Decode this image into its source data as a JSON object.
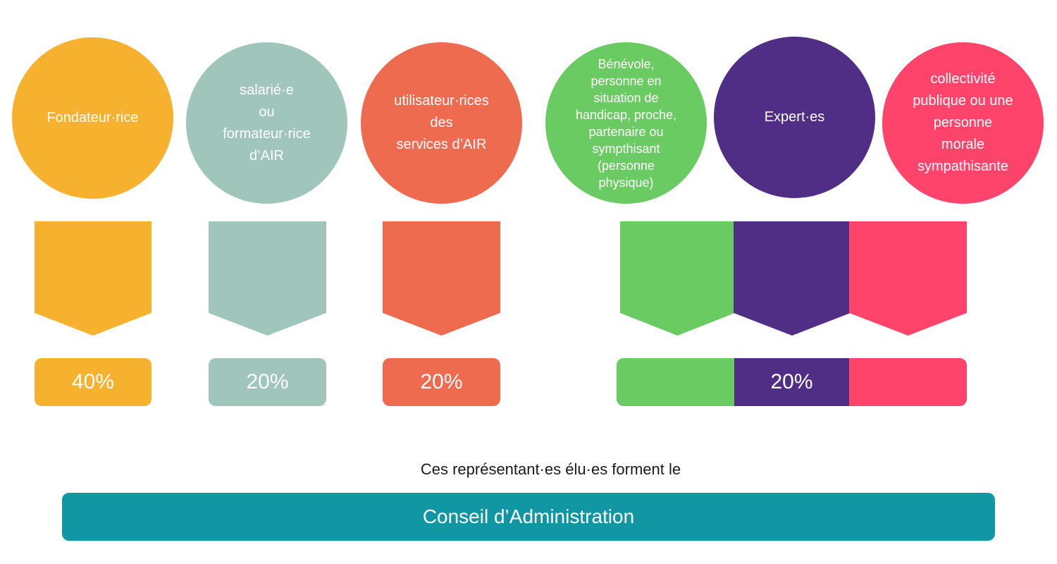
{
  "colors": {
    "fondateur": "#F6B12F",
    "salarie": "#A0C6BC",
    "utilisateur": "#EE6B4F",
    "benevole": "#6BCB63",
    "expert": "#512E85",
    "collectivite": "#FE446B",
    "conseil": "#1197A3"
  },
  "groups": [
    {
      "id": "fondateur",
      "label": "Fondateur·rice"
    },
    {
      "id": "salarie",
      "label": "salarié·e\nou\nformateur·rice\nd’AIR"
    },
    {
      "id": "utilisateur",
      "label": "utilisateur·rices\ndes\nservices d’AIR"
    },
    {
      "id": "benevole",
      "label": "Bénévole,\npersonne en\nsituation de\nhandicap, proche,\npartenaire ou\nsympthisant\n(personne\nphysique)"
    },
    {
      "id": "expert",
      "label": "Expert·es"
    },
    {
      "id": "collectivite",
      "label": "collectivité\npublique ou une\npersonne\nmorale\nsympathisante"
    }
  ],
  "shares": [
    {
      "group": "fondateur",
      "value": "40%",
      "percent": 40
    },
    {
      "group": "salarie",
      "value": "20%",
      "percent": 20
    },
    {
      "group": "utilisateur",
      "value": "20%",
      "percent": 20
    },
    {
      "groups": [
        "benevole",
        "expert",
        "collectivite"
      ],
      "value": "20%",
      "percent": 20
    }
  ],
  "footer": {
    "note": "Ces représentant·es élu·es forment le",
    "board": "Conseil d’Administration"
  }
}
